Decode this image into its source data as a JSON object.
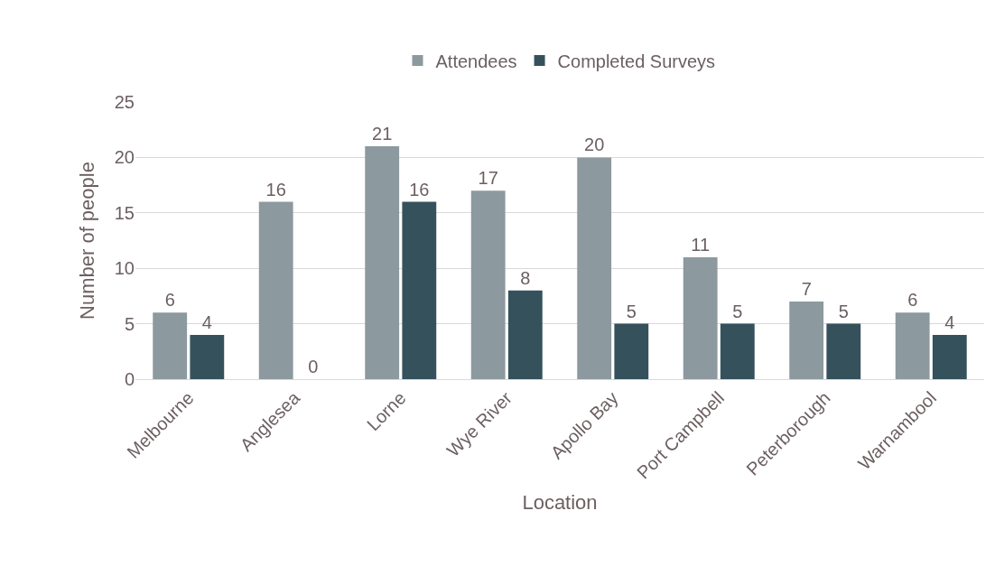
{
  "chart_data": {
    "type": "bar",
    "xlabel": "Location",
    "ylabel": "Number of people",
    "categories": [
      "Melbourne",
      "Anglesea",
      "Lorne",
      "Wye River",
      "Apollo Bay",
      "Port Campbell",
      "Peterborough",
      "Warnambool"
    ],
    "series": [
      {
        "name": "Attendees",
        "color": "#8c999f",
        "values": [
          6,
          16,
          21,
          17,
          20,
          11,
          7,
          6
        ]
      },
      {
        "name": "Completed Surveys",
        "color": "#35525c",
        "values": [
          4,
          0,
          16,
          8,
          5,
          5,
          5,
          4
        ]
      }
    ],
    "ylim": [
      0,
      25
    ],
    "yticks": [
      0,
      5,
      10,
      15,
      20,
      25
    ],
    "grid": "y",
    "legend": "top",
    "data_labels": true
  }
}
